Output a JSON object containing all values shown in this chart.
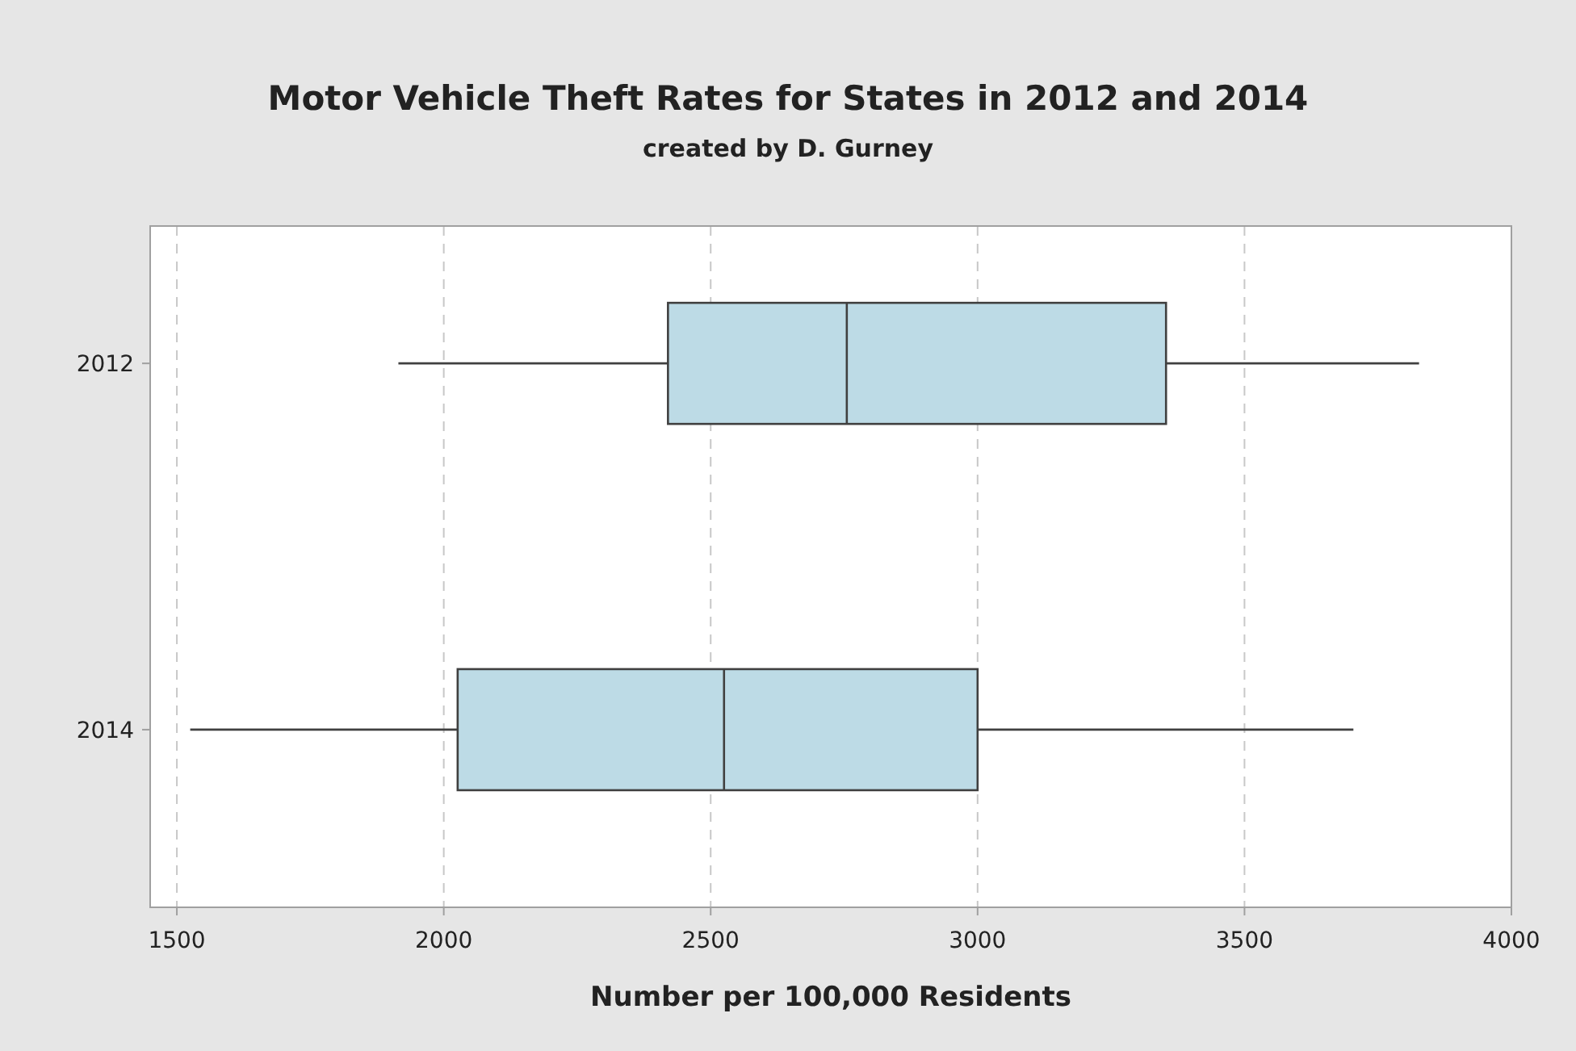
{
  "chart_data": {
    "type": "box",
    "title": "Motor Vehicle Theft Rates for States in 2012 and 2014",
    "subtitle": "created by D. Gurney",
    "xlabel": "Number per 100,000 Residents",
    "orientation": "horizontal",
    "categories": [
      "2012",
      "2014"
    ],
    "boxes": [
      {
        "low": 1915,
        "q1": 2420,
        "median": 2755,
        "q3": 3353,
        "high": 3827
      },
      {
        "low": 1525,
        "q1": 2026,
        "median": 2525,
        "q3": 3000,
        "high": 3704
      }
    ],
    "color": "#bddbe6",
    "xlim": [
      1450,
      4000
    ],
    "xticks": [
      1500,
      2000,
      2500,
      3000,
      3500,
      4000
    ],
    "grid": "x"
  }
}
